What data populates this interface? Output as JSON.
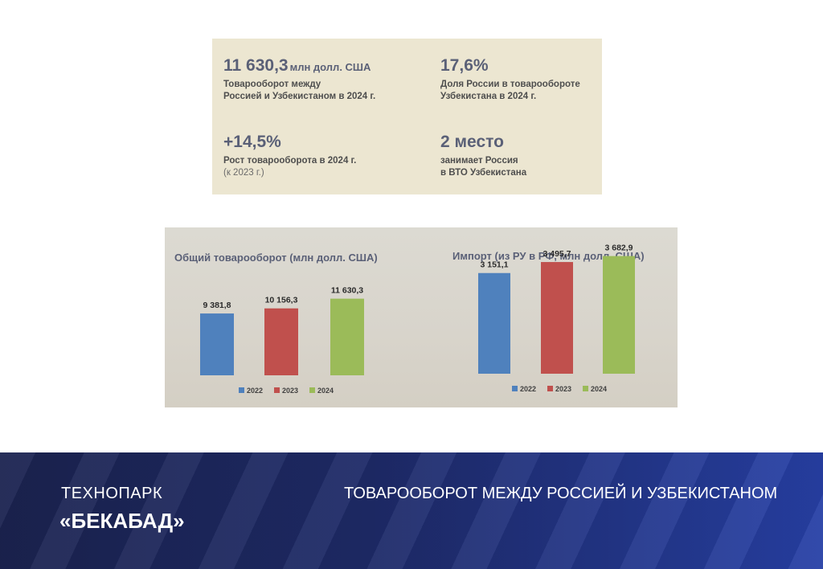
{
  "stats": [
    {
      "value": "11 630,3",
      "unit": "млн долл. США",
      "desc1": "Товарооборот между",
      "desc2": "Россией и Узбекистаном в 2024 г.",
      "desc3": ""
    },
    {
      "value": "17,6%",
      "unit": "",
      "desc1": "Доля России в товарообороте",
      "desc2": "Узбекистана в 2024 г.",
      "desc3": ""
    },
    {
      "value": "+14,5%",
      "unit": "",
      "desc1": "Рост товарооборота в 2024 г.",
      "desc2": "",
      "desc3": "(к 2023 г.)"
    },
    {
      "value": "2 место",
      "unit": "",
      "desc1": "занимает Россия",
      "desc2": "в ВТО Узбекистана",
      "desc3": ""
    }
  ],
  "chart_data": [
    {
      "type": "bar",
      "title": "Общий товарооборот (млн долл. США)",
      "categories": [
        "2022",
        "2023",
        "2024"
      ],
      "values": [
        9381.8,
        10156.3,
        11630.3
      ],
      "labels": [
        "9 381,8",
        "10 156,3",
        "11 630,3"
      ],
      "colors": [
        "#4f81bd",
        "#c0504d",
        "#9bbb59"
      ],
      "legend": "bottom"
    },
    {
      "type": "bar",
      "title": "Импорт (из РУ в РФ, млн долл. США)",
      "categories": [
        "2022",
        "2023",
        "2024"
      ],
      "values": [
        3151.1,
        3495.7,
        3682.9
      ],
      "labels": [
        "3 151,1",
        "3 495,7",
        "3 682,9"
      ],
      "colors": [
        "#4f81bd",
        "#c0504d",
        "#9bbb59"
      ],
      "legend": "bottom"
    }
  ],
  "footer": {
    "brand_line1": "ТЕХНОПАРК",
    "brand_line2": "«БЕКАБАД»",
    "title": "ТОВАРООБОРОТ МЕЖДУ РОССИЕЙ И УЗБЕКИСТАНОМ"
  }
}
